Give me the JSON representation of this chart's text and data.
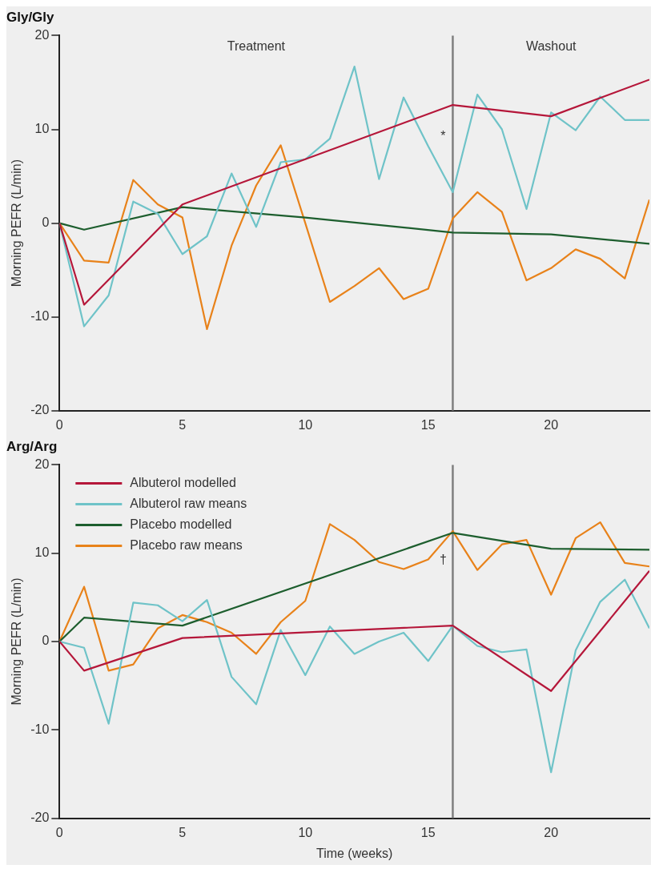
{
  "chart_data": [
    {
      "type": "line",
      "title": "Gly/Gly",
      "ylabel": "Morning PEFR (L/min)",
      "xlim": [
        0,
        24
      ],
      "xticks": [
        0,
        5,
        10,
        15,
        20
      ],
      "ylim": [
        -20,
        20
      ],
      "yticks": [
        -20,
        -10,
        0,
        10,
        20
      ],
      "grid": false,
      "legend": false,
      "marker": "none",
      "line_style": "solid",
      "ref_lines": [
        {
          "axis": "x",
          "value": 16,
          "color": "#7f7f7f"
        }
      ],
      "annotations": [
        "Treatment",
        "Washout",
        "*"
      ],
      "series": [
        {
          "color": "#b5173a",
          "x": [
            0,
            1,
            5,
            16,
            20,
            24
          ],
          "values": [
            0,
            -8.7,
            2,
            12.6,
            11.4,
            15.3
          ]
        },
        {
          "color": "#6fc3c8",
          "x": [
            0,
            1,
            2,
            3,
            4,
            5,
            6,
            7,
            8,
            9,
            10,
            11,
            12,
            13,
            14,
            15,
            16,
            17,
            18,
            19,
            20,
            21,
            22,
            23,
            24
          ],
          "values": [
            0,
            -11,
            -7.7,
            2.3,
            1,
            -3.3,
            -1.4,
            5.3,
            -0.4,
            6.5,
            6.8,
            9,
            16.7,
            4.7,
            13.4,
            8.2,
            3.3,
            13.7,
            10,
            1.5,
            11.8,
            9.9,
            13.5,
            11,
            11
          ]
        },
        {
          "color": "#1d5e2e",
          "x": [
            0,
            1,
            5,
            10,
            16,
            20,
            24
          ],
          "values": [
            0,
            -0.7,
            1.7,
            0.6,
            -1,
            -1.2,
            -2.2
          ]
        },
        {
          "color": "#e8821a",
          "x": [
            0,
            1,
            2,
            3,
            4,
            5,
            6,
            7,
            8,
            9,
            10,
            11,
            12,
            13,
            14,
            15,
            16,
            17,
            18,
            19,
            20,
            21,
            22,
            23,
            24
          ],
          "values": [
            0,
            -4,
            -4.2,
            4.6,
            2,
            0.6,
            -11.3,
            -2.4,
            4,
            8.3,
            0,
            -8.4,
            -6.7,
            -4.8,
            -8.1,
            -7,
            0.5,
            3.3,
            1.2,
            -6.1,
            -4.8,
            -2.8,
            -3.8,
            -5.9,
            2.5
          ]
        }
      ]
    },
    {
      "type": "line",
      "title": "Arg/Arg",
      "xlabel": "Time (weeks)",
      "ylabel": "Morning PEFR (L/min)",
      "xlim": [
        0,
        24
      ],
      "xticks": [
        0,
        5,
        10,
        15,
        20
      ],
      "ylim": [
        -20,
        20
      ],
      "yticks": [
        -20,
        -10,
        0,
        10,
        20
      ],
      "grid": false,
      "legend": "top left",
      "marker": "none",
      "line_style": "solid",
      "ref_lines": [
        {
          "axis": "x",
          "value": 16,
          "color": "#7f7f7f"
        }
      ],
      "annotations": [
        "†"
      ],
      "series": [
        {
          "name": "Albuterol modelled",
          "color": "#b5173a",
          "x": [
            0,
            1,
            5,
            16,
            20,
            24
          ],
          "values": [
            0,
            -3.3,
            0.4,
            1.8,
            -5.6,
            8
          ]
        },
        {
          "name": "Albuterol raw means",
          "color": "#6fc3c8",
          "x": [
            0,
            1,
            2,
            3,
            4,
            5,
            6,
            7,
            8,
            9,
            10,
            11,
            12,
            13,
            14,
            15,
            16,
            17,
            18,
            19,
            20,
            21,
            22,
            23,
            24
          ],
          "values": [
            0,
            -0.7,
            -9.3,
            4.4,
            4.1,
            2.3,
            4.7,
            -4,
            -7.1,
            1.3,
            -3.8,
            1.7,
            -1.4,
            0,
            1,
            -2.2,
            1.8,
            -0.5,
            -1.2,
            -0.9,
            -14.8,
            -1,
            4.5,
            7,
            1.5
          ]
        },
        {
          "name": "Placebo modelled",
          "color": "#1d5e2e",
          "x": [
            0,
            1,
            5,
            16,
            20,
            24
          ],
          "values": [
            0,
            2.7,
            1.8,
            12.3,
            10.5,
            10.4
          ]
        },
        {
          "name": "Placebo raw means",
          "color": "#e8821a",
          "x": [
            0,
            1,
            2,
            3,
            4,
            5,
            6,
            7,
            8,
            9,
            10,
            11,
            12,
            13,
            14,
            15,
            16,
            17,
            18,
            19,
            20,
            21,
            22,
            23,
            24
          ],
          "values": [
            0,
            6.2,
            -3.3,
            -2.6,
            1.5,
            3,
            2.2,
            1,
            -1.4,
            2.2,
            4.6,
            13.3,
            11.5,
            9,
            8.2,
            9.3,
            12.5,
            8.1,
            11,
            11.5,
            5.3,
            11.7,
            13.5,
            8.9,
            8.5
          ]
        }
      ]
    }
  ]
}
